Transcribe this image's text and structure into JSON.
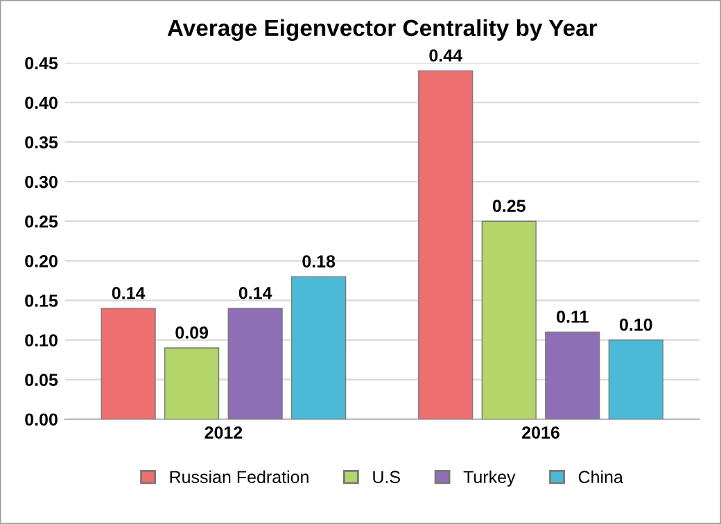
{
  "chart_data": {
    "type": "bar",
    "title": "Average Eigenvector Centrality by Year",
    "categories": [
      "2012",
      "2016"
    ],
    "series": [
      {
        "name": "Russian Fedration",
        "color": "#ee6f6f",
        "values": [
          0.14,
          0.44
        ],
        "value_labels": [
          "0.14",
          "0.44"
        ]
      },
      {
        "name": "U.S",
        "color": "#b3d56a",
        "values": [
          0.09,
          0.25
        ],
        "value_labels": [
          "0.09",
          "0.25"
        ]
      },
      {
        "name": "Turkey",
        "color": "#8e6fb5",
        "values": [
          0.14,
          0.11
        ],
        "value_labels": [
          "0.14",
          "0.11"
        ]
      },
      {
        "name": "China",
        "color": "#4bbad6",
        "values": [
          0.18,
          0.1
        ],
        "value_labels": [
          "0.18",
          "0.10"
        ]
      }
    ],
    "ylim": [
      0,
      0.45
    ],
    "yticks": [
      {
        "value": 0,
        "label": "0.00"
      },
      {
        "value": 0.05,
        "label": "0.05"
      },
      {
        "value": 0.1,
        "label": "0.10"
      },
      {
        "value": 0.15,
        "label": "0.15"
      },
      {
        "value": 0.2,
        "label": "0.20"
      },
      {
        "value": 0.25,
        "label": "0.25"
      },
      {
        "value": 0.3,
        "label": "0.30"
      },
      {
        "value": 0.35,
        "label": "0.35"
      },
      {
        "value": 0.4,
        "label": "0.40"
      },
      {
        "value": 0.45,
        "label": "0.45"
      }
    ],
    "grid": "y",
    "legend": "bottom"
  }
}
